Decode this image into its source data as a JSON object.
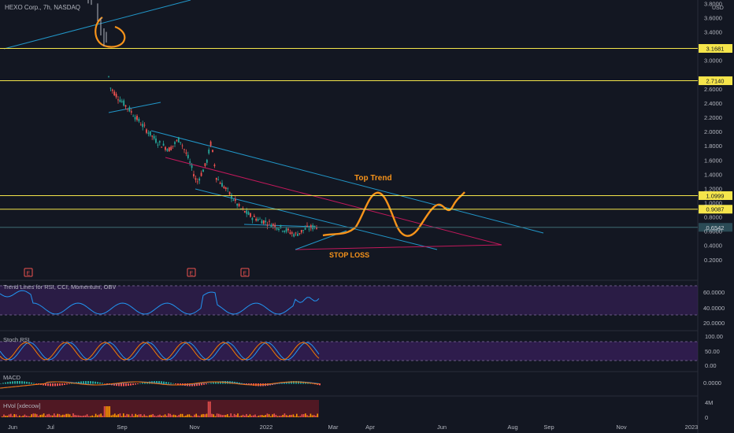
{
  "header": {
    "symbol_title": "HEXO Corp., 7h, NASDAQ"
  },
  "price_axis": {
    "currency": "USD",
    "tick_labels": [
      "3.8000",
      "3.6000",
      "3.4000",
      "3.0000",
      "2.6000",
      "2.4000",
      "2.2000",
      "2.0000",
      "1.8000",
      "1.6000",
      "1.4000",
      "1.2000",
      "1.0000",
      "0.8000",
      "0.6000",
      "0.4000",
      "0.2000"
    ],
    "tick_values": [
      3.8,
      3.6,
      3.4,
      3.0,
      2.6,
      2.4,
      2.2,
      2.0,
      1.8,
      1.6,
      1.4,
      1.2,
      1.0,
      0.8,
      0.6,
      0.4,
      0.2
    ]
  },
  "time_axis": {
    "labels": [
      "Jun",
      "Jul",
      "Sep",
      "Nov",
      "2022",
      "Mar",
      "Apr",
      "Jun",
      "Aug",
      "Sep",
      "Nov",
      "2023"
    ]
  },
  "horizontal_levels": [
    {
      "label": "3.1681",
      "value": 3.1681
    },
    {
      "label": "2.7140",
      "value": 2.714
    },
    {
      "label": "1.0999",
      "value": 1.0999
    },
    {
      "label": "0.9087",
      "value": 0.9087
    }
  ],
  "last_price": {
    "label": "0.6542",
    "value": 0.6542
  },
  "annotations": {
    "top_trend": "Top Trend",
    "stop_loss": "STOP LOSS"
  },
  "earnings_marker": "E",
  "panes": {
    "rsi": {
      "title": "Trend Lines for RSI, CCI, Momentum, OBV",
      "ticks": [
        "60.0000",
        "40.0000",
        "20.0000"
      ]
    },
    "stoch": {
      "title": "Stoch RSI",
      "ticks": [
        "100.00",
        "50.00",
        "0.00"
      ]
    },
    "macd": {
      "title": "MACD",
      "ticks": [
        "0.0000"
      ]
    },
    "hvol": {
      "title": "HVol [xdecow]",
      "ticks": [
        "4M",
        "0"
      ]
    }
  },
  "colors": {
    "background": "#131722",
    "up_candle": "#26a69a",
    "down_candle": "#ef5350",
    "level_line": "#f5e54b",
    "trend_line": "#2196c8",
    "stop_line": "#c2185b",
    "drawing": "#f7931a",
    "pane_band": "#3b1f5e"
  },
  "chart_data": {
    "type": "candlestick",
    "title": "HEXO Corp., 7h, NASDAQ",
    "ylabel": "USD",
    "ylim": [
      0.1,
      3.9
    ],
    "scale": "linear",
    "approx_close_path": [
      {
        "x": "Jul",
        "y": 3.7
      },
      {
        "x": "Aug",
        "y": 2.6
      },
      {
        "x": "Sep",
        "y": 2.4
      },
      {
        "x": "Oct",
        "y": 1.8
      },
      {
        "x": "Nov",
        "y": 1.8
      },
      {
        "x": "Dec",
        "y": 1.0
      },
      {
        "x": "Jan",
        "y": 0.6
      },
      {
        "x": "Feb",
        "y": 0.65
      }
    ],
    "horizontal_levels": [
      3.1681,
      2.714,
      1.0999,
      0.9087
    ],
    "last_price": 0.6542
  }
}
